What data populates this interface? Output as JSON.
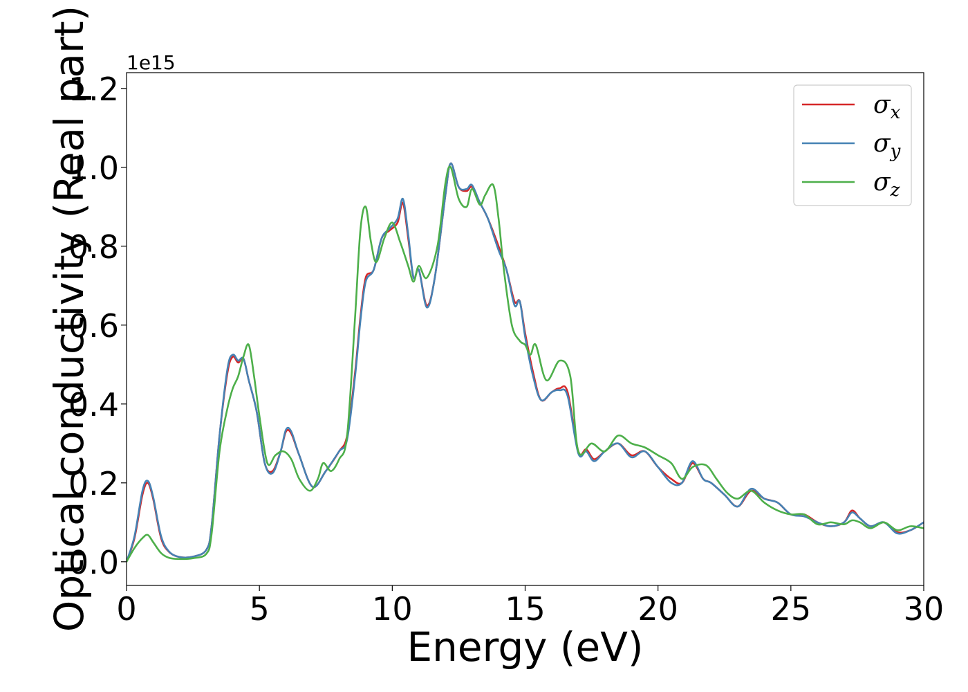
{
  "chart_data": {
    "type": "line",
    "title": "",
    "xlabel": "Energy (eV)",
    "ylabel": "Optical conductivity (Real part)",
    "y_offset_label": "1e15",
    "xlim": [
      0,
      30
    ],
    "ylim": [
      -0.06,
      1.24
    ],
    "xticks": [
      0,
      5,
      10,
      15,
      20,
      25,
      30
    ],
    "xtick_labels": [
      "0",
      "5",
      "10",
      "15",
      "20",
      "25",
      "30"
    ],
    "yticks": [
      0.0,
      0.2,
      0.4,
      0.6,
      0.8,
      1.0,
      1.2
    ],
    "ytick_labels": [
      "0.0",
      "0.2",
      "0.4",
      "0.6",
      "0.8",
      "1.0",
      "1.2"
    ],
    "grid": false,
    "legend_position": "top-right",
    "series": [
      {
        "name": "σx",
        "legend_main": "σ",
        "legend_sub": "x",
        "color": "#d62728",
        "x": [
          0,
          0.3,
          0.6,
          0.8,
          1.0,
          1.3,
          1.6,
          2.0,
          2.5,
          3.0,
          3.2,
          3.5,
          3.8,
          4.0,
          4.2,
          4.4,
          4.6,
          4.9,
          5.2,
          5.5,
          5.8,
          6.0,
          6.2,
          6.5,
          7.0,
          7.5,
          8.0,
          8.3,
          8.6,
          8.8,
          9.0,
          9.3,
          9.6,
          9.9,
          10.2,
          10.4,
          10.6,
          10.8,
          11.0,
          11.3,
          11.6,
          12.0,
          12.2,
          12.5,
          12.8,
          13.0,
          13.3,
          13.6,
          14.0,
          14.3,
          14.6,
          14.8,
          15.0,
          15.3,
          15.6,
          16.0,
          16.3,
          16.6,
          17.0,
          17.3,
          17.6,
          18.0,
          18.5,
          19.0,
          19.5,
          20.0,
          20.5,
          20.9,
          21.3,
          21.7,
          22.0,
          22.5,
          23.0,
          23.5,
          24.0,
          24.5,
          25.0,
          25.5,
          26.0,
          26.5,
          27.0,
          27.3,
          27.6,
          28.0,
          28.5,
          29.0,
          29.5,
          30
        ],
        "y": [
          0.0,
          0.06,
          0.17,
          0.2,
          0.16,
          0.06,
          0.025,
          0.012,
          0.013,
          0.03,
          0.09,
          0.32,
          0.48,
          0.52,
          0.505,
          0.515,
          0.46,
          0.38,
          0.25,
          0.23,
          0.28,
          0.33,
          0.325,
          0.27,
          0.19,
          0.23,
          0.28,
          0.32,
          0.48,
          0.62,
          0.72,
          0.74,
          0.82,
          0.84,
          0.86,
          0.91,
          0.82,
          0.72,
          0.74,
          0.65,
          0.72,
          0.93,
          1.01,
          0.95,
          0.94,
          0.95,
          0.91,
          0.87,
          0.8,
          0.74,
          0.66,
          0.66,
          0.58,
          0.48,
          0.41,
          0.43,
          0.44,
          0.43,
          0.28,
          0.285,
          0.26,
          0.28,
          0.3,
          0.27,
          0.28,
          0.24,
          0.21,
          0.2,
          0.25,
          0.21,
          0.2,
          0.17,
          0.14,
          0.18,
          0.16,
          0.15,
          0.12,
          0.12,
          0.1,
          0.09,
          0.1,
          0.13,
          0.11,
          0.09,
          0.1,
          0.075,
          0.08,
          0.1
        ]
      },
      {
        "name": "σy",
        "legend_main": "σ",
        "legend_sub": "y",
        "color": "#4682b4",
        "x": [
          0,
          0.3,
          0.6,
          0.8,
          1.0,
          1.3,
          1.6,
          2.0,
          2.5,
          3.0,
          3.2,
          3.5,
          3.8,
          4.0,
          4.2,
          4.4,
          4.6,
          4.9,
          5.2,
          5.5,
          5.8,
          6.0,
          6.2,
          6.5,
          7.0,
          7.5,
          8.0,
          8.3,
          8.6,
          8.8,
          9.0,
          9.3,
          9.6,
          9.9,
          10.2,
          10.4,
          10.6,
          10.8,
          11.0,
          11.3,
          11.6,
          12.0,
          12.2,
          12.5,
          12.8,
          13.0,
          13.3,
          13.6,
          14.0,
          14.3,
          14.6,
          14.8,
          15.0,
          15.3,
          15.6,
          16.0,
          16.3,
          16.6,
          17.0,
          17.3,
          17.6,
          18.0,
          18.5,
          19.0,
          19.5,
          20.0,
          20.5,
          20.9,
          21.3,
          21.7,
          22.0,
          22.5,
          23.0,
          23.5,
          24.0,
          24.5,
          25.0,
          25.5,
          26.0,
          26.5,
          27.0,
          27.3,
          27.6,
          28.0,
          28.5,
          29.0,
          29.5,
          30
        ],
        "y": [
          0.0,
          0.065,
          0.18,
          0.205,
          0.165,
          0.065,
          0.026,
          0.012,
          0.013,
          0.03,
          0.09,
          0.32,
          0.49,
          0.525,
          0.51,
          0.515,
          0.46,
          0.38,
          0.25,
          0.225,
          0.28,
          0.335,
          0.33,
          0.27,
          0.19,
          0.23,
          0.28,
          0.31,
          0.47,
          0.61,
          0.71,
          0.74,
          0.82,
          0.845,
          0.87,
          0.92,
          0.83,
          0.72,
          0.74,
          0.645,
          0.72,
          0.93,
          1.01,
          0.95,
          0.945,
          0.955,
          0.91,
          0.87,
          0.79,
          0.74,
          0.65,
          0.66,
          0.57,
          0.47,
          0.41,
          0.43,
          0.435,
          0.42,
          0.275,
          0.28,
          0.255,
          0.28,
          0.3,
          0.265,
          0.28,
          0.24,
          0.2,
          0.2,
          0.255,
          0.21,
          0.2,
          0.17,
          0.14,
          0.185,
          0.16,
          0.15,
          0.12,
          0.115,
          0.1,
          0.09,
          0.1,
          0.125,
          0.11,
          0.09,
          0.1,
          0.072,
          0.08,
          0.1
        ]
      },
      {
        "name": "σz",
        "legend_main": "σ",
        "legend_sub": "z",
        "color": "#4daf4a",
        "x": [
          0,
          0.3,
          0.6,
          0.8,
          1.0,
          1.3,
          1.6,
          2.0,
          2.5,
          3.0,
          3.2,
          3.5,
          3.8,
          4.0,
          4.2,
          4.4,
          4.6,
          4.8,
          5.0,
          5.3,
          5.6,
          5.9,
          6.2,
          6.5,
          6.9,
          7.2,
          7.4,
          7.7,
          8.0,
          8.3,
          8.6,
          8.8,
          9.0,
          9.2,
          9.4,
          9.7,
          10.0,
          10.3,
          10.6,
          10.8,
          11.0,
          11.3,
          11.7,
          12.0,
          12.2,
          12.5,
          12.8,
          13.0,
          13.3,
          13.5,
          13.8,
          14.0,
          14.2,
          14.5,
          14.8,
          15.0,
          15.2,
          15.4,
          15.8,
          16.3,
          16.7,
          17.0,
          17.5,
          18.0,
          18.5,
          19.0,
          19.5,
          20.0,
          20.5,
          20.9,
          21.3,
          21.8,
          22.2,
          22.6,
          23.0,
          23.5,
          24.0,
          24.5,
          25.0,
          25.5,
          26.0,
          26.5,
          27.0,
          27.3,
          27.6,
          28.0,
          28.5,
          29.0,
          29.5,
          30
        ],
        "y": [
          0.0,
          0.035,
          0.06,
          0.068,
          0.05,
          0.022,
          0.01,
          0.007,
          0.009,
          0.02,
          0.07,
          0.28,
          0.39,
          0.44,
          0.47,
          0.52,
          0.55,
          0.47,
          0.37,
          0.25,
          0.27,
          0.28,
          0.26,
          0.21,
          0.18,
          0.21,
          0.25,
          0.23,
          0.26,
          0.32,
          0.62,
          0.84,
          0.9,
          0.81,
          0.76,
          0.82,
          0.86,
          0.81,
          0.75,
          0.71,
          0.75,
          0.72,
          0.8,
          0.96,
          1.0,
          0.92,
          0.9,
          0.945,
          0.905,
          0.93,
          0.955,
          0.87,
          0.74,
          0.6,
          0.56,
          0.55,
          0.525,
          0.55,
          0.46,
          0.51,
          0.47,
          0.28,
          0.3,
          0.28,
          0.32,
          0.3,
          0.29,
          0.27,
          0.25,
          0.21,
          0.24,
          0.245,
          0.21,
          0.175,
          0.16,
          0.18,
          0.15,
          0.13,
          0.12,
          0.12,
          0.095,
          0.1,
          0.095,
          0.105,
          0.1,
          0.085,
          0.1,
          0.08,
          0.09,
          0.085
        ]
      }
    ]
  }
}
